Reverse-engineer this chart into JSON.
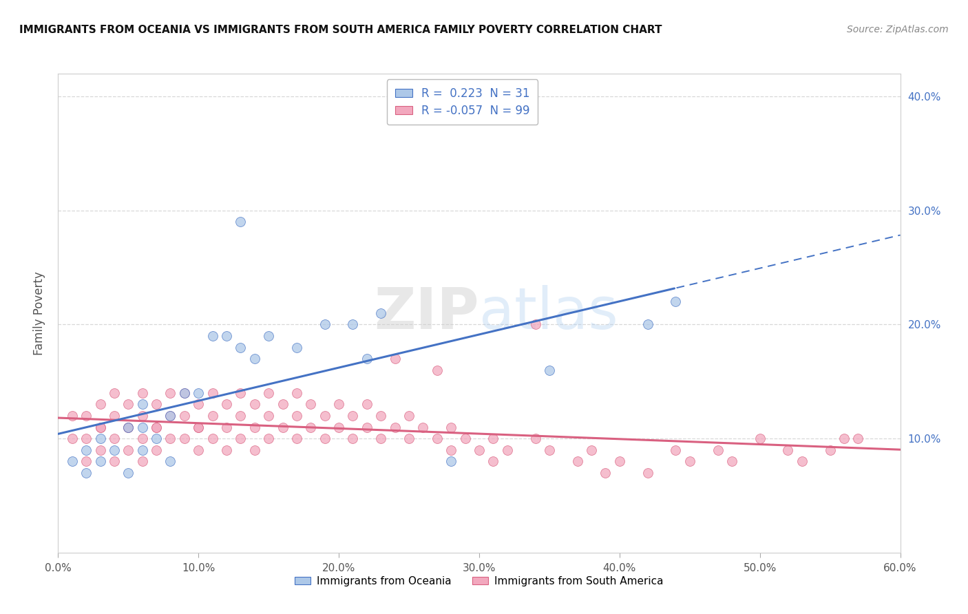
{
  "title": "IMMIGRANTS FROM OCEANIA VS IMMIGRANTS FROM SOUTH AMERICA FAMILY POVERTY CORRELATION CHART",
  "source": "Source: ZipAtlas.com",
  "ylabel": "Family Poverty",
  "xlim": [
    0.0,
    0.6
  ],
  "ylim": [
    0.0,
    0.42
  ],
  "xtick_vals": [
    0.0,
    0.1,
    0.2,
    0.3,
    0.4,
    0.5,
    0.6
  ],
  "ytick_vals": [
    0.1,
    0.2,
    0.3,
    0.4
  ],
  "color_oceania": "#adc8e8",
  "color_sa": "#f2a8be",
  "line_color_oceania": "#4472c4",
  "line_color_sa": "#d96080",
  "R_oceania": 0.223,
  "N_oceania": 31,
  "R_sa": -0.057,
  "N_sa": 99,
  "legend_label_oceania": "Immigrants from Oceania",
  "legend_label_sa": "Immigrants from South America",
  "background_color": "#ffffff",
  "grid_color": "#d8d8d8",
  "oceania_x": [
    0.01,
    0.02,
    0.02,
    0.03,
    0.03,
    0.04,
    0.05,
    0.05,
    0.06,
    0.06,
    0.06,
    0.07,
    0.08,
    0.08,
    0.09,
    0.1,
    0.11,
    0.12,
    0.13,
    0.14,
    0.15,
    0.17,
    0.19,
    0.21,
    0.22,
    0.23,
    0.28,
    0.35,
    0.42,
    0.44,
    0.13
  ],
  "oceania_y": [
    0.08,
    0.07,
    0.09,
    0.1,
    0.08,
    0.09,
    0.07,
    0.11,
    0.09,
    0.11,
    0.13,
    0.1,
    0.08,
    0.12,
    0.14,
    0.14,
    0.19,
    0.19,
    0.18,
    0.17,
    0.19,
    0.18,
    0.2,
    0.2,
    0.17,
    0.21,
    0.08,
    0.16,
    0.2,
    0.22,
    0.29
  ],
  "sa_x": [
    0.01,
    0.01,
    0.02,
    0.02,
    0.02,
    0.03,
    0.03,
    0.03,
    0.03,
    0.04,
    0.04,
    0.04,
    0.04,
    0.05,
    0.05,
    0.05,
    0.05,
    0.06,
    0.06,
    0.06,
    0.06,
    0.07,
    0.07,
    0.07,
    0.07,
    0.08,
    0.08,
    0.08,
    0.09,
    0.09,
    0.09,
    0.1,
    0.1,
    0.1,
    0.1,
    0.11,
    0.11,
    0.11,
    0.12,
    0.12,
    0.12,
    0.13,
    0.13,
    0.13,
    0.14,
    0.14,
    0.14,
    0.15,
    0.15,
    0.15,
    0.16,
    0.16,
    0.17,
    0.17,
    0.17,
    0.18,
    0.18,
    0.19,
    0.19,
    0.2,
    0.2,
    0.21,
    0.21,
    0.22,
    0.22,
    0.23,
    0.23,
    0.24,
    0.25,
    0.25,
    0.26,
    0.27,
    0.28,
    0.28,
    0.29,
    0.3,
    0.31,
    0.31,
    0.32,
    0.34,
    0.35,
    0.37,
    0.38,
    0.39,
    0.4,
    0.42,
    0.44,
    0.45,
    0.47,
    0.48,
    0.5,
    0.52,
    0.53,
    0.55,
    0.56,
    0.57,
    0.34,
    0.24,
    0.27
  ],
  "sa_y": [
    0.1,
    0.12,
    0.1,
    0.12,
    0.08,
    0.11,
    0.09,
    0.11,
    0.13,
    0.1,
    0.12,
    0.08,
    0.14,
    0.11,
    0.09,
    0.11,
    0.13,
    0.1,
    0.08,
    0.12,
    0.14,
    0.09,
    0.11,
    0.13,
    0.11,
    0.1,
    0.12,
    0.14,
    0.1,
    0.12,
    0.14,
    0.09,
    0.11,
    0.13,
    0.11,
    0.1,
    0.12,
    0.14,
    0.09,
    0.11,
    0.13,
    0.1,
    0.12,
    0.14,
    0.11,
    0.09,
    0.13,
    0.1,
    0.12,
    0.14,
    0.11,
    0.13,
    0.1,
    0.12,
    0.14,
    0.11,
    0.13,
    0.1,
    0.12,
    0.11,
    0.13,
    0.1,
    0.12,
    0.11,
    0.13,
    0.1,
    0.12,
    0.11,
    0.1,
    0.12,
    0.11,
    0.1,
    0.09,
    0.11,
    0.1,
    0.09,
    0.1,
    0.08,
    0.09,
    0.1,
    0.09,
    0.08,
    0.09,
    0.07,
    0.08,
    0.07,
    0.09,
    0.08,
    0.09,
    0.08,
    0.1,
    0.09,
    0.08,
    0.09,
    0.1,
    0.1,
    0.2,
    0.17,
    0.16
  ]
}
